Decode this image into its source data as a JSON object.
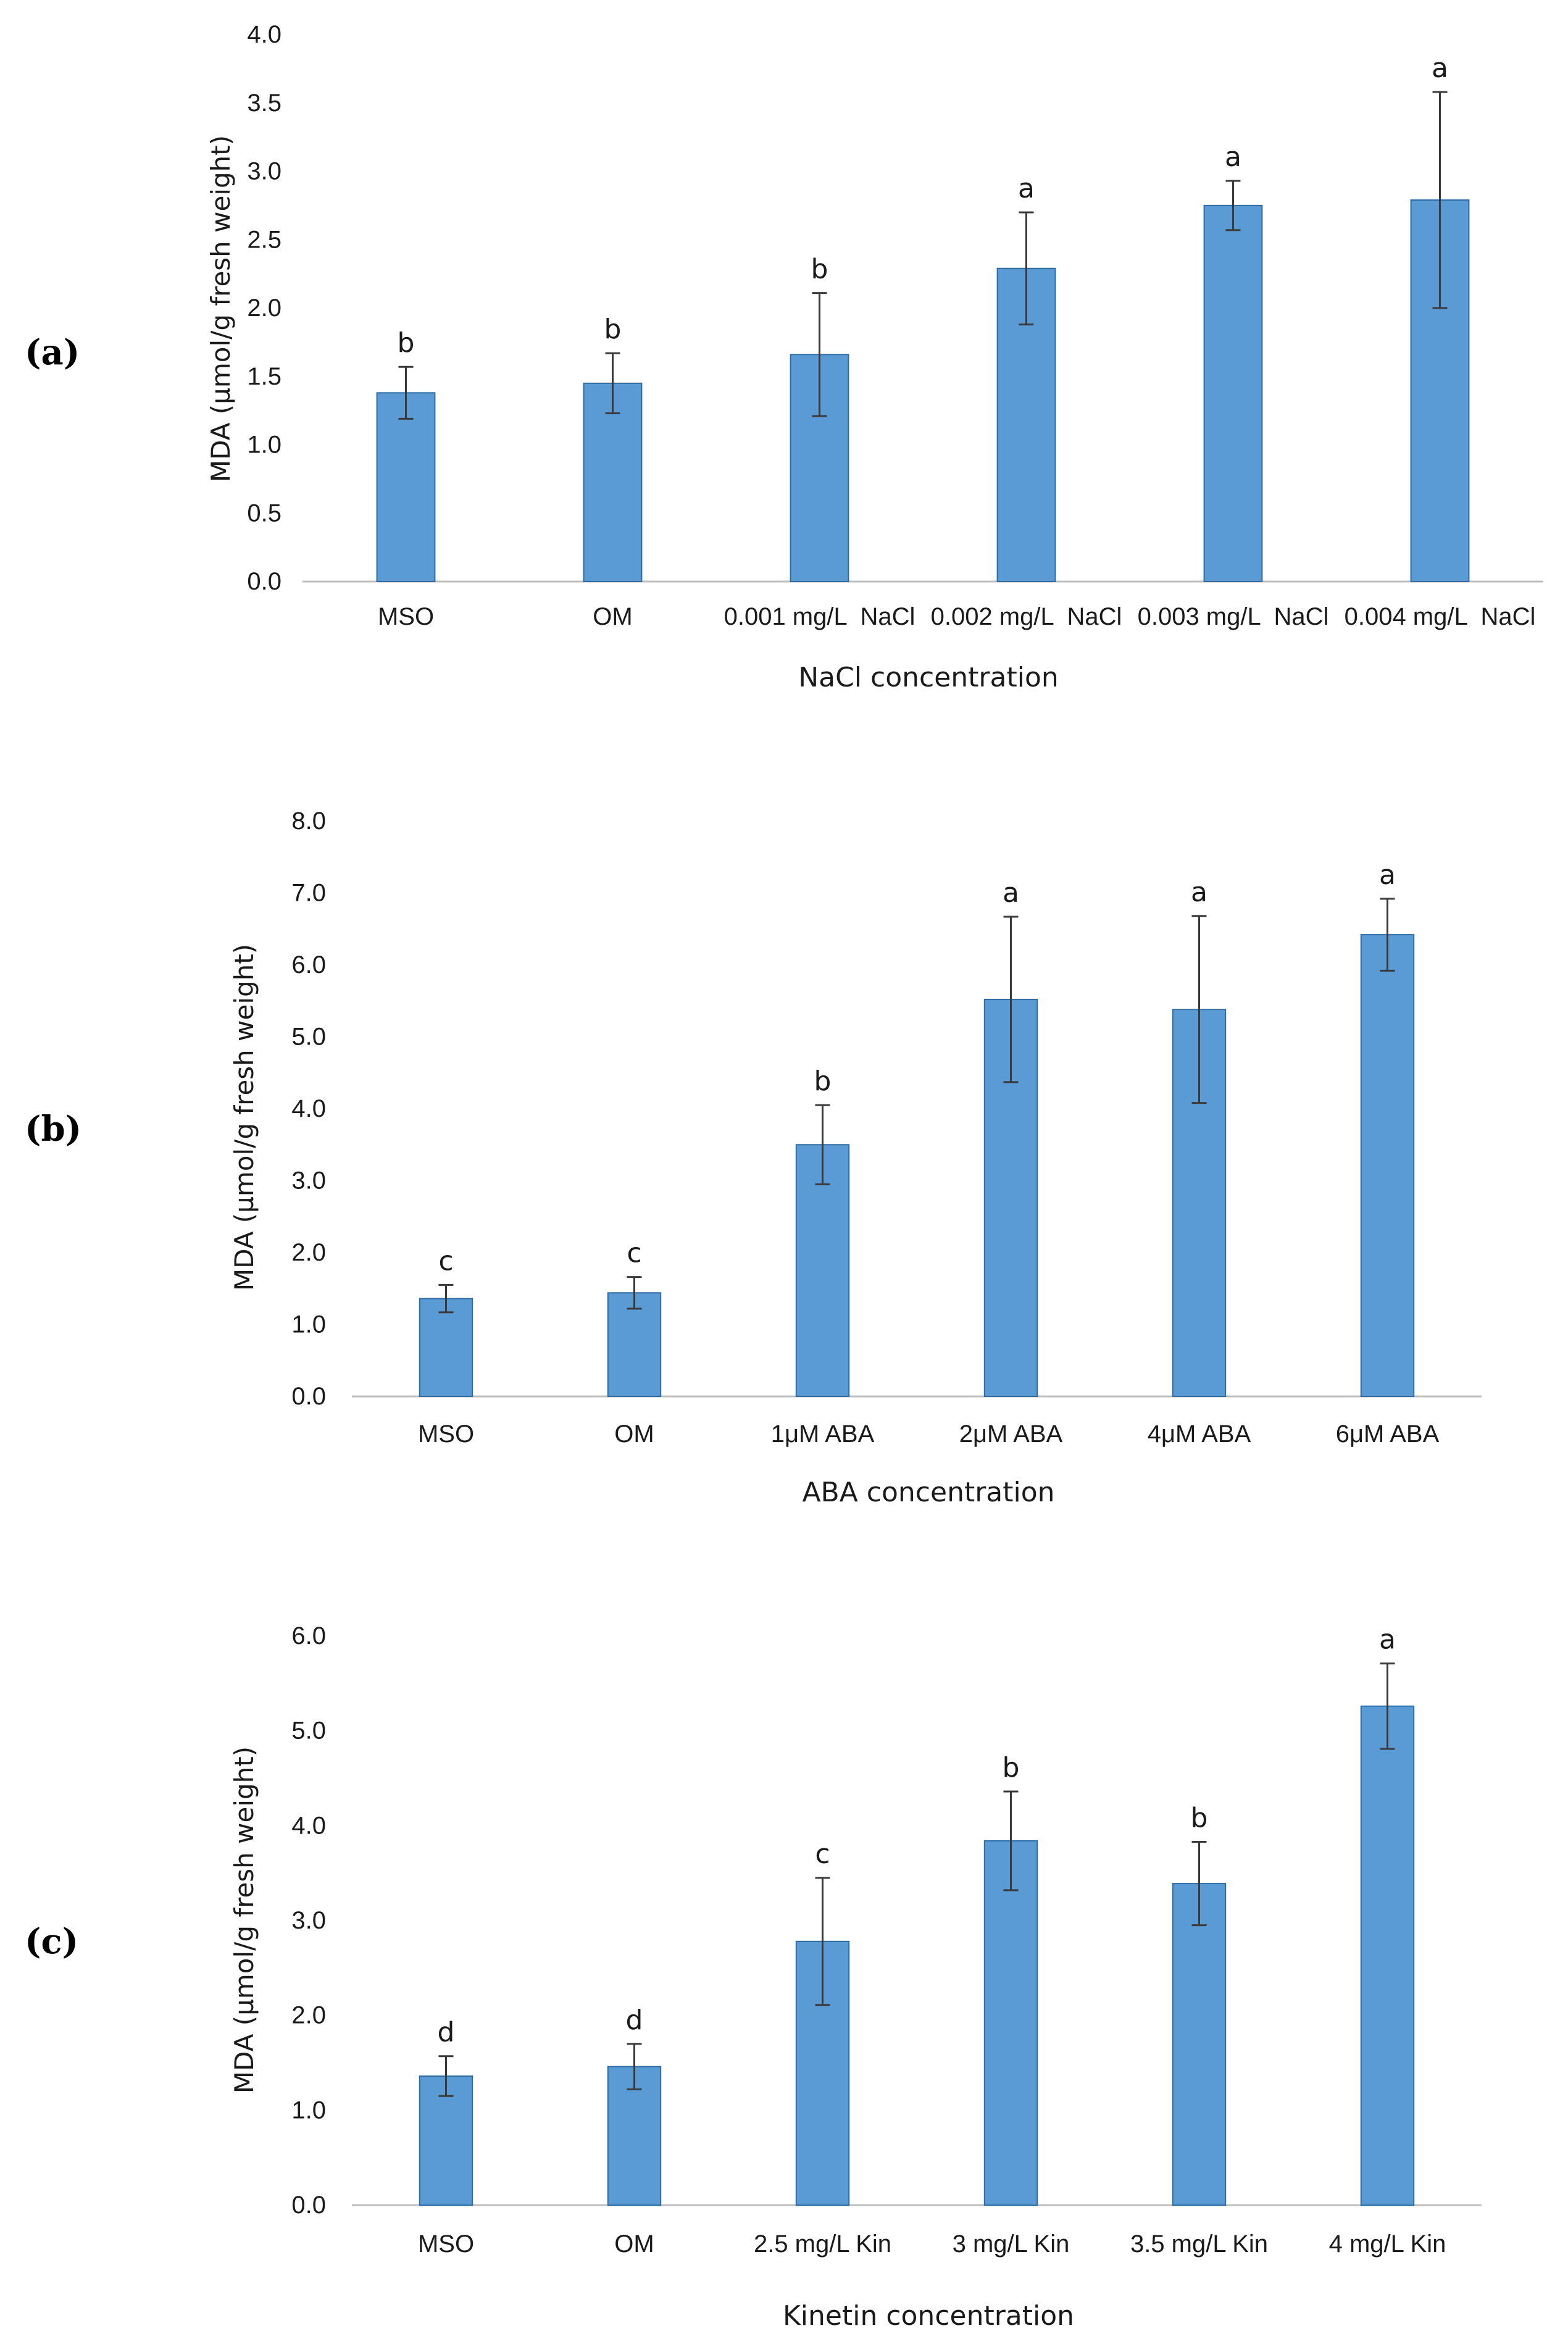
{
  "colors": {
    "bar": "#5B9BD5",
    "bar_edge": "#2E6DA4",
    "axis": "#BFBFBF",
    "error": "#3a3a3a"
  },
  "chart_data": [
    {
      "type": "bar",
      "panel": "(a)",
      "title": "",
      "xlabel": "NaCl concentration",
      "ylabel": "MDA (μmol/g fresh weight)",
      "ylim": [
        0,
        4
      ],
      "ytick_step": 0.5,
      "ytick_decimals": 1,
      "categories": [
        "MSO",
        "OM",
        "0.001 mg/L  NaCl",
        "0.002 mg/L  NaCl",
        "0.003 mg/L  NaCl",
        "0.004 mg/L  NaCl"
      ],
      "values": [
        1.38,
        1.45,
        1.66,
        2.29,
        2.75,
        2.79
      ],
      "errors": [
        0.19,
        0.22,
        0.45,
        0.41,
        0.18,
        0.79
      ],
      "letters": [
        "b",
        "b",
        "b",
        "a",
        "a",
        "a"
      ]
    },
    {
      "type": "bar",
      "panel": "(b)",
      "title": "",
      "xlabel": "ABA concentration",
      "ylabel": "MDA (μmol/g fresh weight)",
      "ylim": [
        0,
        8
      ],
      "ytick_step": 1,
      "ytick_decimals": 1,
      "categories": [
        "MSO",
        "OM",
        "1μM ABA",
        "2μM ABA",
        "4μM ABA",
        "6μM ABA"
      ],
      "values": [
        1.36,
        1.44,
        3.5,
        5.52,
        5.38,
        6.42
      ],
      "errors": [
        0.19,
        0.22,
        0.55,
        1.15,
        1.3,
        0.5
      ],
      "letters": [
        "c",
        "c",
        "b",
        "a",
        "a",
        "a"
      ]
    },
    {
      "type": "bar",
      "panel": "(c)",
      "title": "",
      "xlabel": "Kinetin concentration",
      "ylabel": "MDA (μmol/g fresh weight)",
      "ylim": [
        0,
        6
      ],
      "ytick_step": 1,
      "ytick_decimals": 1,
      "categories": [
        "MSO",
        "OM",
        "2.5 mg/L Kin",
        "3 mg/L Kin",
        "3.5 mg/L Kin",
        "4 mg/L Kin"
      ],
      "values": [
        1.36,
        1.46,
        2.78,
        3.84,
        3.39,
        5.26
      ],
      "errors": [
        0.21,
        0.24,
        0.67,
        0.52,
        0.44,
        0.45
      ],
      "letters": [
        "d",
        "d",
        "c",
        "b",
        "b",
        "a"
      ]
    }
  ]
}
